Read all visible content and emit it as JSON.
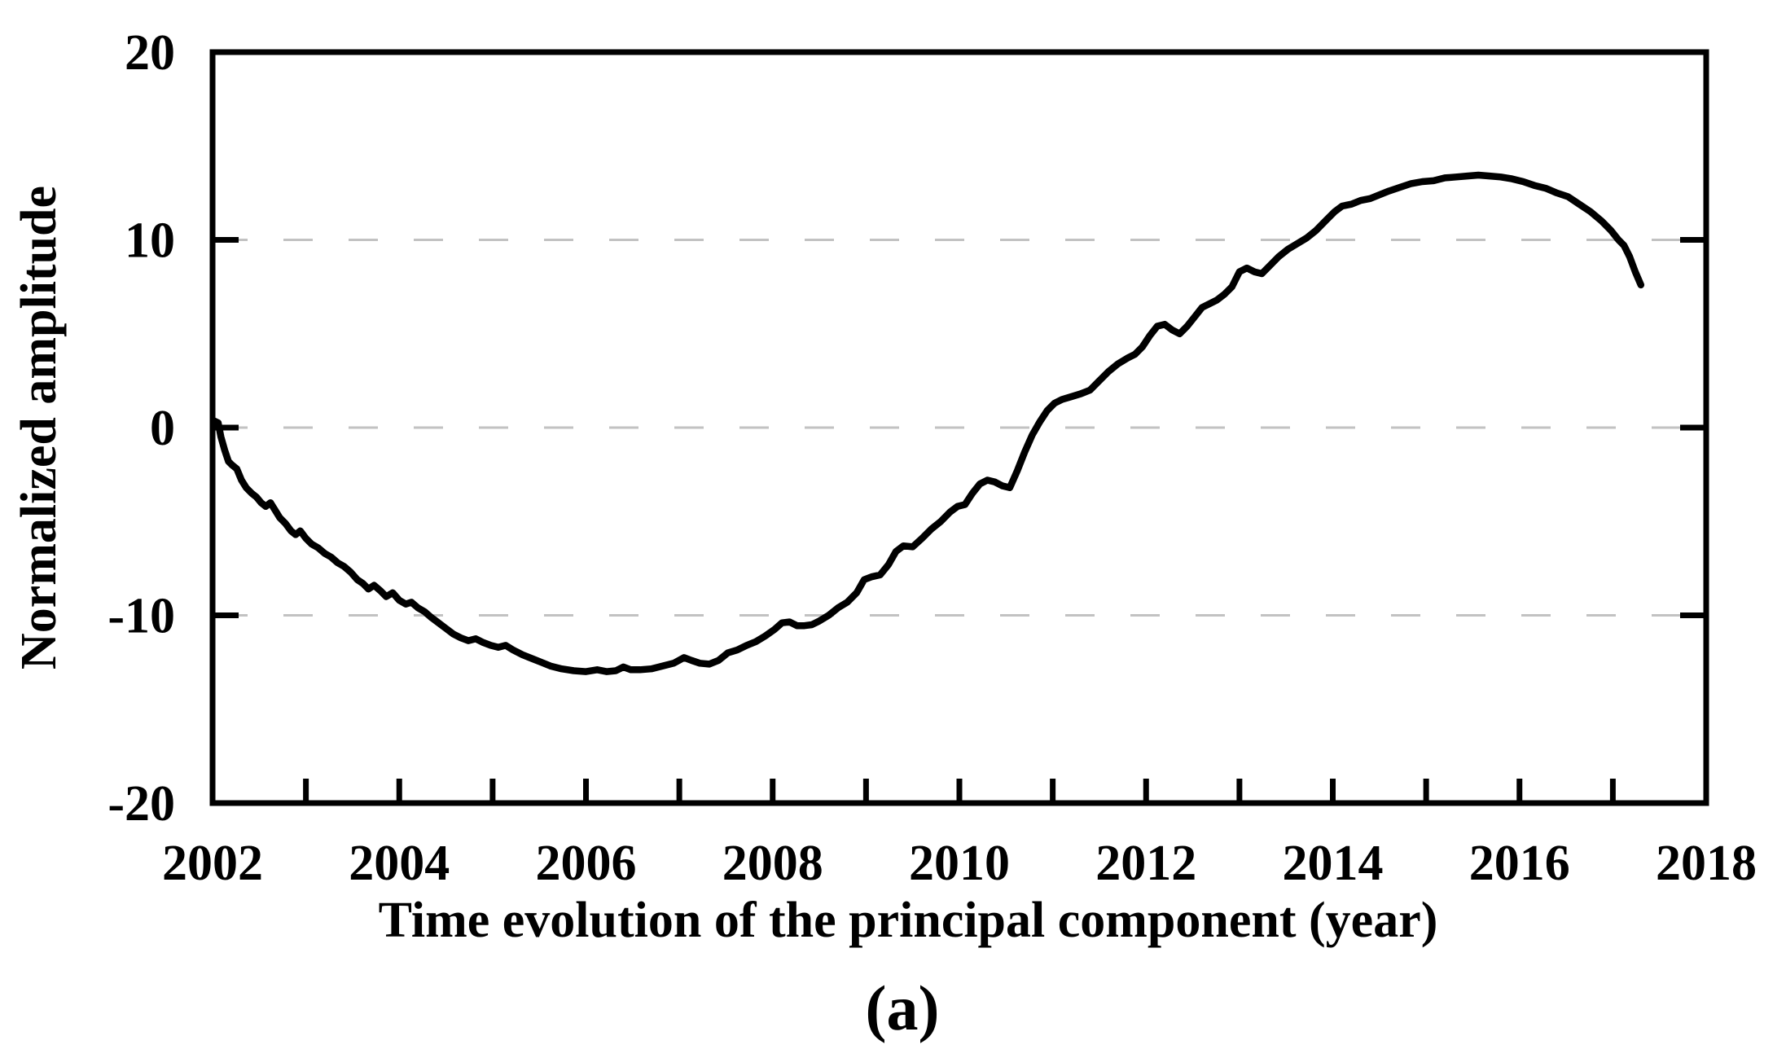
{
  "figure": {
    "caption": "(a)"
  },
  "chart_data": {
    "type": "line",
    "title": "",
    "xlabel": "Time evolution of the principal component (year)",
    "ylabel": "Normalized amplitude",
    "xlim": [
      2002,
      2018
    ],
    "ylim": [
      -20,
      20
    ],
    "x_tick_labels": [
      "2002",
      "2004",
      "2006",
      "2008",
      "2010",
      "2012",
      "2014",
      "2016",
      "2018"
    ],
    "x_tick_label_values": [
      2002,
      2004,
      2006,
      2008,
      2010,
      2012,
      2014,
      2016,
      2018
    ],
    "x_minor_tick_values": [
      2003,
      2004,
      2005,
      2006,
      2007,
      2008,
      2009,
      2010,
      2011,
      2012,
      2013,
      2014,
      2015,
      2016,
      2017
    ],
    "y_tick_labels": [
      "20",
      "10",
      "0",
      "-10",
      "-20"
    ],
    "y_tick_label_values": [
      20,
      10,
      0,
      -10,
      -20
    ],
    "y_inner_tick_values": [
      10,
      0,
      -10
    ],
    "gridline_values": [
      10,
      0,
      -10
    ],
    "grid_style": "horizontal dashed",
    "line_color": "#000000",
    "gridline_color": "#c2c2c2",
    "series": [
      {
        "name": "principal component amplitude",
        "points": [
          [
            2002.02,
            0.35
          ],
          [
            2002.06,
            0.25
          ],
          [
            2002.09,
            -0.5
          ],
          [
            2002.13,
            -1.2
          ],
          [
            2002.17,
            -1.8
          ],
          [
            2002.21,
            -2.0
          ],
          [
            2002.26,
            -2.2
          ],
          [
            2002.31,
            -2.8
          ],
          [
            2002.36,
            -3.2
          ],
          [
            2002.42,
            -3.5
          ],
          [
            2002.47,
            -3.7
          ],
          [
            2002.52,
            -4.0
          ],
          [
            2002.57,
            -4.2
          ],
          [
            2002.62,
            -4.0
          ],
          [
            2002.67,
            -4.4
          ],
          [
            2002.72,
            -4.8
          ],
          [
            2002.78,
            -5.1
          ],
          [
            2002.84,
            -5.5
          ],
          [
            2002.89,
            -5.7
          ],
          [
            2002.94,
            -5.5
          ],
          [
            2003.0,
            -5.9
          ],
          [
            2003.06,
            -6.2
          ],
          [
            2003.13,
            -6.4
          ],
          [
            2003.2,
            -6.7
          ],
          [
            2003.27,
            -6.9
          ],
          [
            2003.34,
            -7.2
          ],
          [
            2003.41,
            -7.4
          ],
          [
            2003.48,
            -7.7
          ],
          [
            2003.55,
            -8.1
          ],
          [
            2003.61,
            -8.3
          ],
          [
            2003.67,
            -8.6
          ],
          [
            2003.73,
            -8.4
          ],
          [
            2003.8,
            -8.7
          ],
          [
            2003.86,
            -9.0
          ],
          [
            2003.93,
            -8.8
          ],
          [
            2004.0,
            -9.2
          ],
          [
            2004.07,
            -9.4
          ],
          [
            2004.13,
            -9.3
          ],
          [
            2004.2,
            -9.6
          ],
          [
            2004.27,
            -9.8
          ],
          [
            2004.34,
            -10.1
          ],
          [
            2004.42,
            -10.4
          ],
          [
            2004.5,
            -10.7
          ],
          [
            2004.58,
            -11.0
          ],
          [
            2004.66,
            -11.2
          ],
          [
            2004.74,
            -11.35
          ],
          [
            2004.82,
            -11.25
          ],
          [
            2004.9,
            -11.45
          ],
          [
            2004.98,
            -11.6
          ],
          [
            2005.06,
            -11.7
          ],
          [
            2005.14,
            -11.6
          ],
          [
            2005.22,
            -11.85
          ],
          [
            2005.32,
            -12.1
          ],
          [
            2005.42,
            -12.3
          ],
          [
            2005.52,
            -12.5
          ],
          [
            2005.62,
            -12.7
          ],
          [
            2005.74,
            -12.85
          ],
          [
            2005.87,
            -12.95
          ],
          [
            2006.0,
            -13.0
          ],
          [
            2006.12,
            -12.9
          ],
          [
            2006.22,
            -13.0
          ],
          [
            2006.32,
            -12.95
          ],
          [
            2006.4,
            -12.75
          ],
          [
            2006.48,
            -12.9
          ],
          [
            2006.58,
            -12.9
          ],
          [
            2006.7,
            -12.85
          ],
          [
            2006.82,
            -12.7
          ],
          [
            2006.94,
            -12.55
          ],
          [
            2007.05,
            -12.25
          ],
          [
            2007.13,
            -12.4
          ],
          [
            2007.22,
            -12.55
          ],
          [
            2007.32,
            -12.6
          ],
          [
            2007.42,
            -12.4
          ],
          [
            2007.52,
            -12.0
          ],
          [
            2007.62,
            -11.85
          ],
          [
            2007.72,
            -11.6
          ],
          [
            2007.82,
            -11.4
          ],
          [
            2007.92,
            -11.1
          ],
          [
            2008.02,
            -10.75
          ],
          [
            2008.1,
            -10.4
          ],
          [
            2008.18,
            -10.35
          ],
          [
            2008.26,
            -10.55
          ],
          [
            2008.34,
            -10.55
          ],
          [
            2008.42,
            -10.5
          ],
          [
            2008.5,
            -10.3
          ],
          [
            2008.6,
            -10.0
          ],
          [
            2008.7,
            -9.6
          ],
          [
            2008.8,
            -9.3
          ],
          [
            2008.9,
            -8.8
          ],
          [
            2008.98,
            -8.1
          ],
          [
            2009.06,
            -7.95
          ],
          [
            2009.15,
            -7.85
          ],
          [
            2009.24,
            -7.3
          ],
          [
            2009.32,
            -6.6
          ],
          [
            2009.4,
            -6.3
          ],
          [
            2009.5,
            -6.35
          ],
          [
            2009.6,
            -5.9
          ],
          [
            2009.7,
            -5.4
          ],
          [
            2009.8,
            -5.0
          ],
          [
            2009.9,
            -4.5
          ],
          [
            2009.98,
            -4.2
          ],
          [
            2010.06,
            -4.1
          ],
          [
            2010.14,
            -3.5
          ],
          [
            2010.22,
            -3.0
          ],
          [
            2010.3,
            -2.8
          ],
          [
            2010.38,
            -2.9
          ],
          [
            2010.46,
            -3.1
          ],
          [
            2010.54,
            -3.2
          ],
          [
            2010.62,
            -2.3
          ],
          [
            2010.7,
            -1.3
          ],
          [
            2010.78,
            -0.4
          ],
          [
            2010.86,
            0.3
          ],
          [
            2010.94,
            0.9
          ],
          [
            2011.02,
            1.3
          ],
          [
            2011.1,
            1.5
          ],
          [
            2011.2,
            1.65
          ],
          [
            2011.3,
            1.8
          ],
          [
            2011.4,
            2.0
          ],
          [
            2011.5,
            2.5
          ],
          [
            2011.6,
            3.0
          ],
          [
            2011.7,
            3.4
          ],
          [
            2011.8,
            3.7
          ],
          [
            2011.88,
            3.9
          ],
          [
            2011.96,
            4.3
          ],
          [
            2012.04,
            4.9
          ],
          [
            2012.12,
            5.4
          ],
          [
            2012.2,
            5.5
          ],
          [
            2012.28,
            5.2
          ],
          [
            2012.36,
            5.0
          ],
          [
            2012.44,
            5.4
          ],
          [
            2012.52,
            5.9
          ],
          [
            2012.6,
            6.4
          ],
          [
            2012.68,
            6.6
          ],
          [
            2012.76,
            6.8
          ],
          [
            2012.84,
            7.1
          ],
          [
            2012.92,
            7.5
          ],
          [
            2013.0,
            8.3
          ],
          [
            2013.08,
            8.5
          ],
          [
            2013.16,
            8.3
          ],
          [
            2013.24,
            8.2
          ],
          [
            2013.32,
            8.6
          ],
          [
            2013.42,
            9.1
          ],
          [
            2013.52,
            9.5
          ],
          [
            2013.62,
            9.8
          ],
          [
            2013.72,
            10.1
          ],
          [
            2013.82,
            10.5
          ],
          [
            2013.92,
            11.0
          ],
          [
            2014.02,
            11.5
          ],
          [
            2014.1,
            11.8
          ],
          [
            2014.2,
            11.9
          ],
          [
            2014.3,
            12.1
          ],
          [
            2014.4,
            12.2
          ],
          [
            2014.5,
            12.4
          ],
          [
            2014.6,
            12.6
          ],
          [
            2014.72,
            12.8
          ],
          [
            2014.84,
            13.0
          ],
          [
            2014.96,
            13.1
          ],
          [
            2015.08,
            13.15
          ],
          [
            2015.2,
            13.3
          ],
          [
            2015.32,
            13.35
          ],
          [
            2015.44,
            13.4
          ],
          [
            2015.56,
            13.45
          ],
          [
            2015.68,
            13.4
          ],
          [
            2015.8,
            13.35
          ],
          [
            2015.92,
            13.25
          ],
          [
            2016.04,
            13.1
          ],
          [
            2016.16,
            12.9
          ],
          [
            2016.28,
            12.75
          ],
          [
            2016.4,
            12.5
          ],
          [
            2016.52,
            12.3
          ],
          [
            2016.64,
            11.9
          ],
          [
            2016.76,
            11.5
          ],
          [
            2016.88,
            11.0
          ],
          [
            2016.98,
            10.5
          ],
          [
            2017.06,
            10.0
          ],
          [
            2017.12,
            9.7
          ],
          [
            2017.18,
            9.1
          ],
          [
            2017.24,
            8.3
          ],
          [
            2017.3,
            7.6
          ]
        ]
      }
    ]
  }
}
